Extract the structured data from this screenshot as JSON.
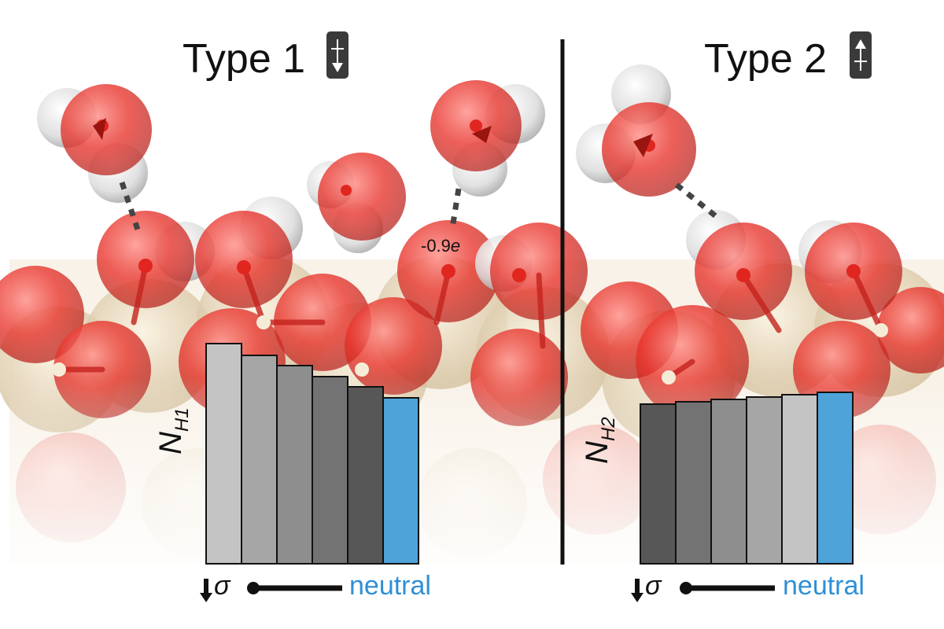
{
  "panels": [
    {
      "title": "Type 1",
      "axis_label_main": "N",
      "axis_label_sub": "H1",
      "charge_label_value": "-0.9",
      "charge_label_unit": "e",
      "sigma_label": "σ",
      "neutral_label": "neutral"
    },
    {
      "title": "Type 2",
      "axis_label_main": "N",
      "axis_label_sub": "H2",
      "sigma_label": "σ",
      "neutral_label": "neutral"
    }
  ],
  "colors": {
    "neutral": "#4ea3d9",
    "oxygen": "#e0261f",
    "hydrogen": "#e4e4e4",
    "silicon": "#e8d9b5"
  },
  "chart_data": [
    {
      "type": "bar",
      "series": [
        {
          "values": [
            280,
            265,
            252,
            238,
            225,
            211
          ]
        }
      ],
      "bar_colors": [
        "#c4c4c4",
        "#a6a6a6",
        "#8e8e8e",
        "#737373",
        "#575757",
        "#4ea3d9"
      ],
      "ylim": [
        0,
        300
      ]
    },
    {
      "type": "bar",
      "series": [
        {
          "values": [
            203,
            206,
            209,
            212,
            215,
            218
          ]
        }
      ],
      "bar_colors": [
        "#575757",
        "#737373",
        "#8e8e8e",
        "#a6a6a6",
        "#c4c4c4",
        "#4ea3d9"
      ],
      "ylim": [
        0,
        300
      ]
    }
  ]
}
